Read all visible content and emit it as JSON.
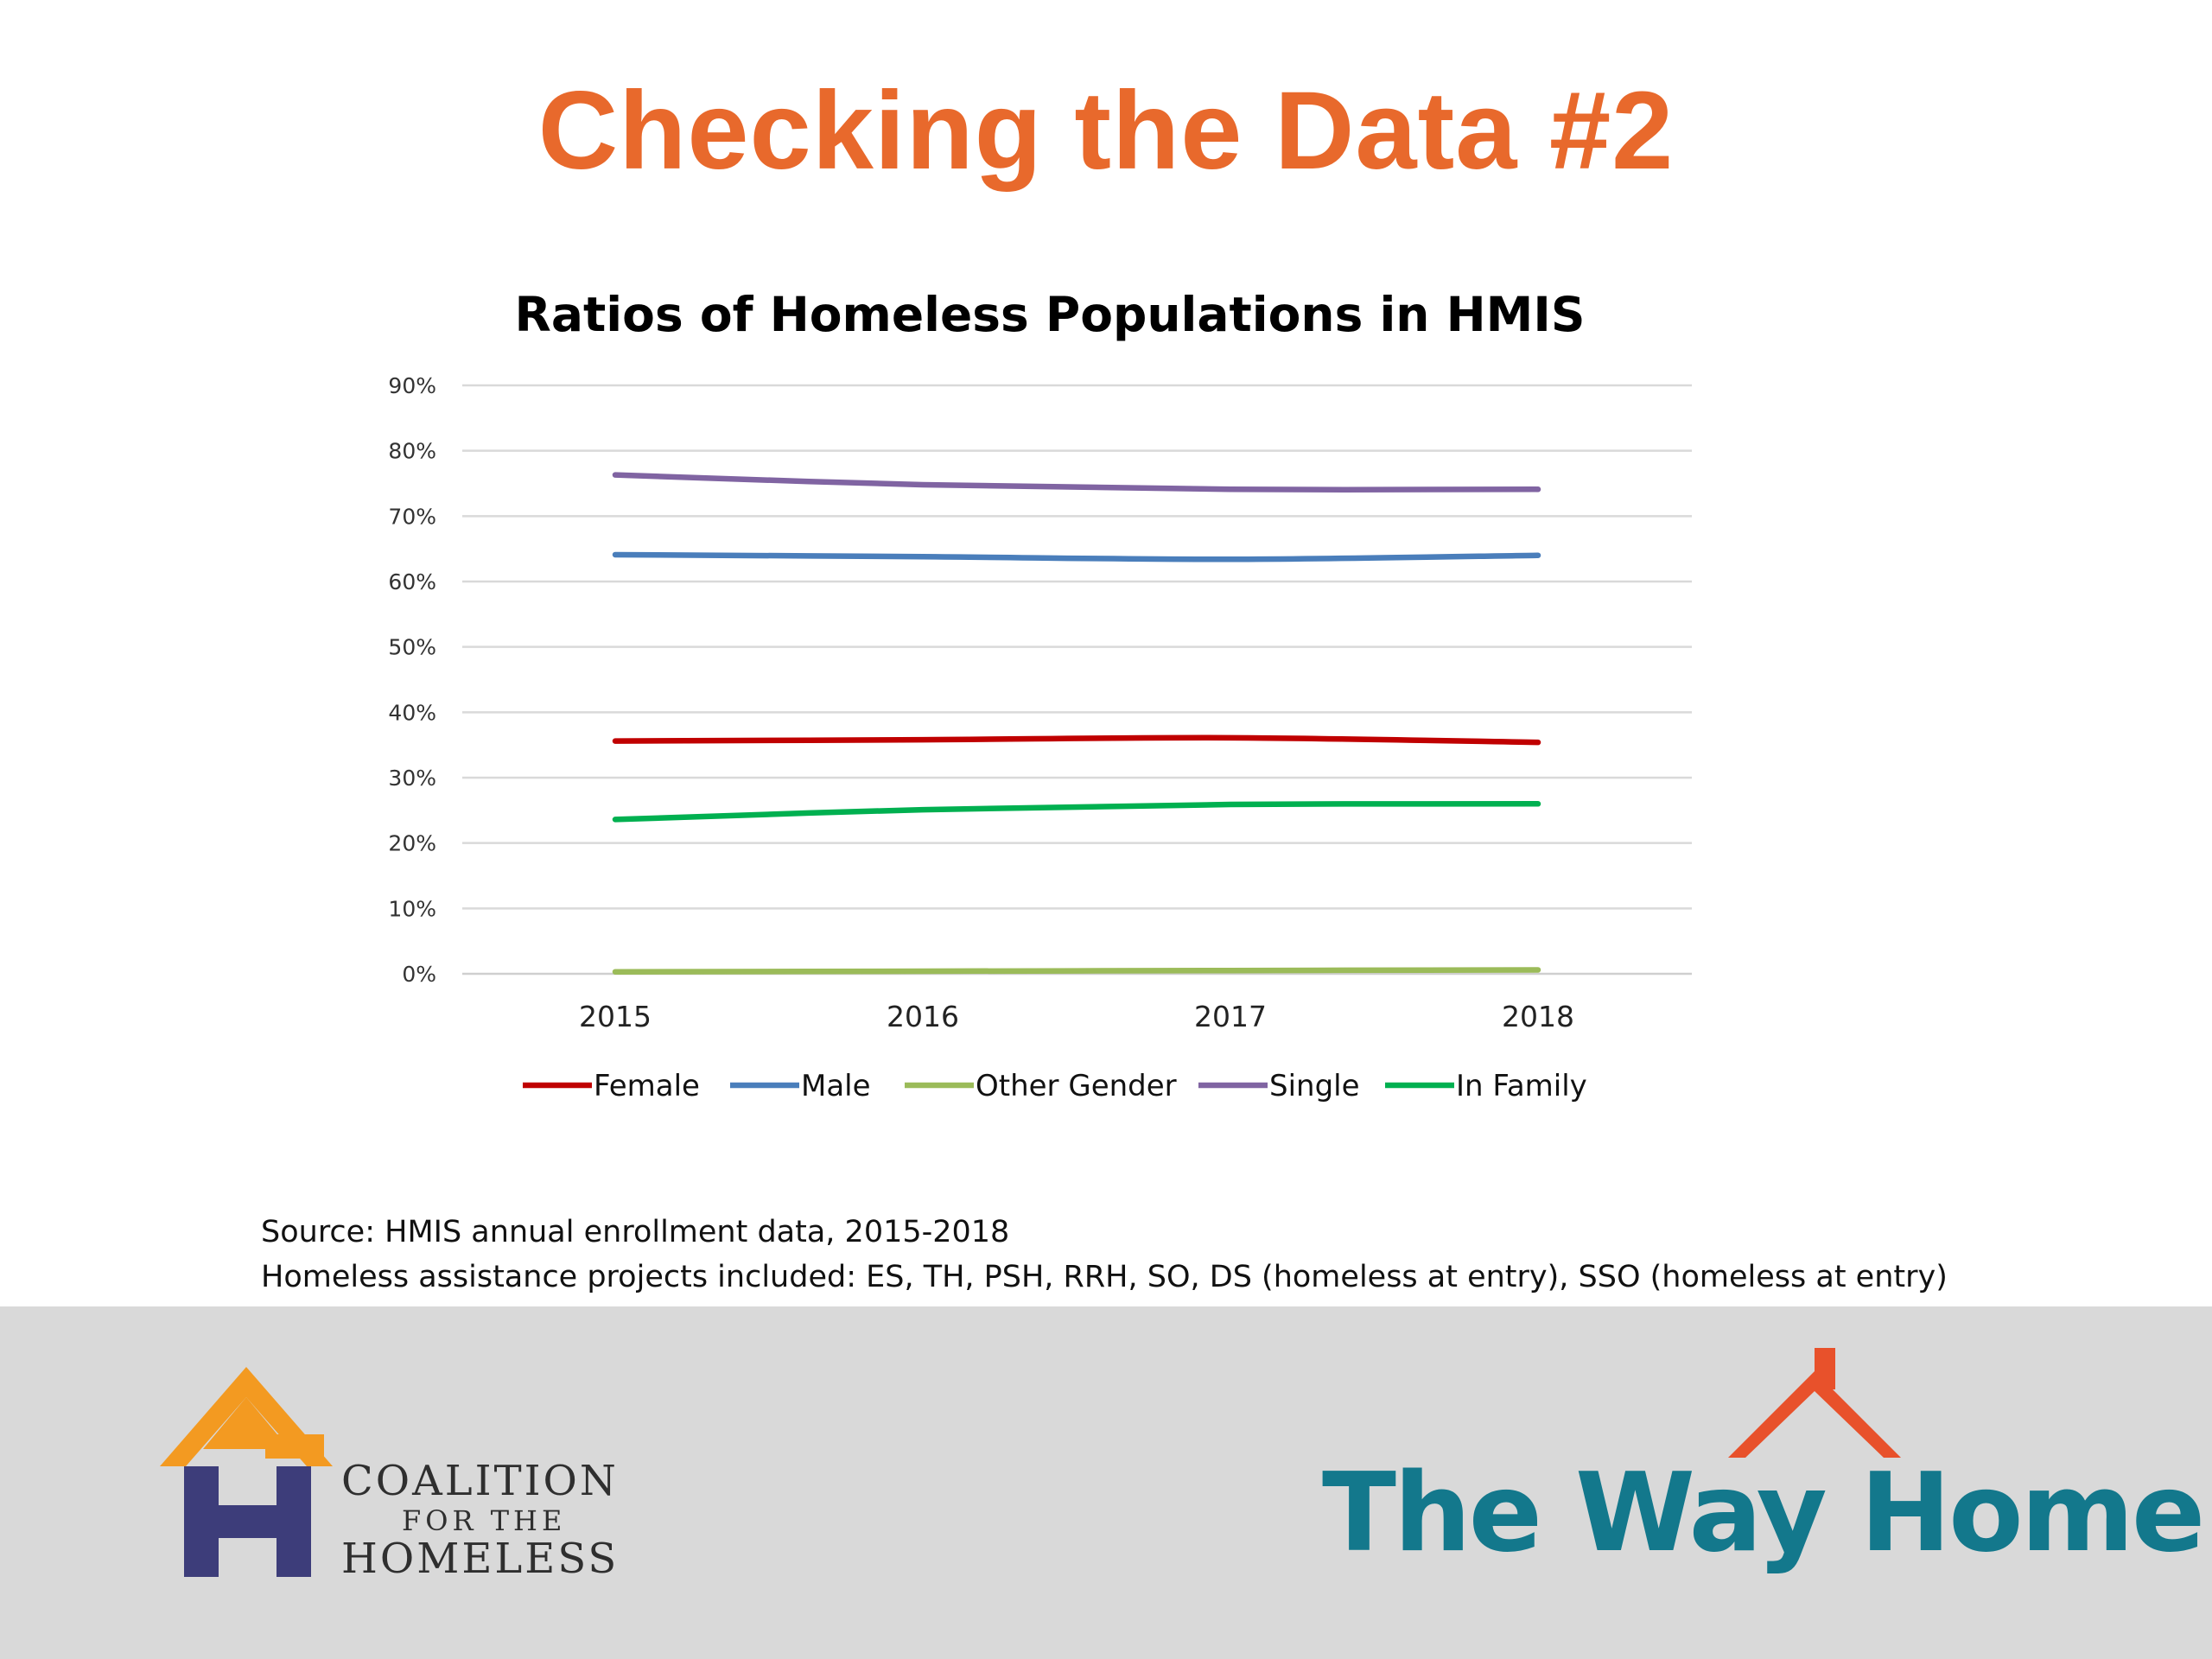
{
  "slide": {
    "title": "Checking the Data #2",
    "source_line1": "Source: HMIS annual enrollment data, 2015-2018",
    "source_line2": "Homeless assistance projects included: ES, TH, PSH, RRH, SO, DS (homeless at entry), SSO (homeless at entry)"
  },
  "logos": {
    "coalition_line1": "COALITION",
    "coalition_line2": "FOR THE",
    "coalition_line3": "HOMELESS",
    "wayhome": "The Way Home"
  },
  "chart_data": {
    "type": "line",
    "title": "Ratios of Homeless Populations in HMIS",
    "xlabel": "",
    "ylabel": "",
    "categories": [
      "2015",
      "2016",
      "2017",
      "2018"
    ],
    "ylim": [
      0,
      0.9
    ],
    "yticks": [
      "0%",
      "10%",
      "20%",
      "30%",
      "40%",
      "50%",
      "60%",
      "70%",
      "80%",
      "90%"
    ],
    "grid": true,
    "legend_position": "bottom",
    "series": [
      {
        "name": "Female",
        "color": "#c00000",
        "values": [
          0.356,
          0.358,
          0.361,
          0.354
        ]
      },
      {
        "name": "Male",
        "color": "#4a7ebb",
        "values": [
          0.641,
          0.638,
          0.634,
          0.64
        ]
      },
      {
        "name": "Other Gender",
        "color": "#9bbb59",
        "values": [
          0.003,
          0.004,
          0.005,
          0.006
        ]
      },
      {
        "name": "Single",
        "color": "#8064a2",
        "values": [
          0.763,
          0.748,
          0.741,
          0.741
        ]
      },
      {
        "name": "In Family",
        "color": "#00b050",
        "values": [
          0.236,
          0.251,
          0.259,
          0.26
        ]
      }
    ]
  }
}
